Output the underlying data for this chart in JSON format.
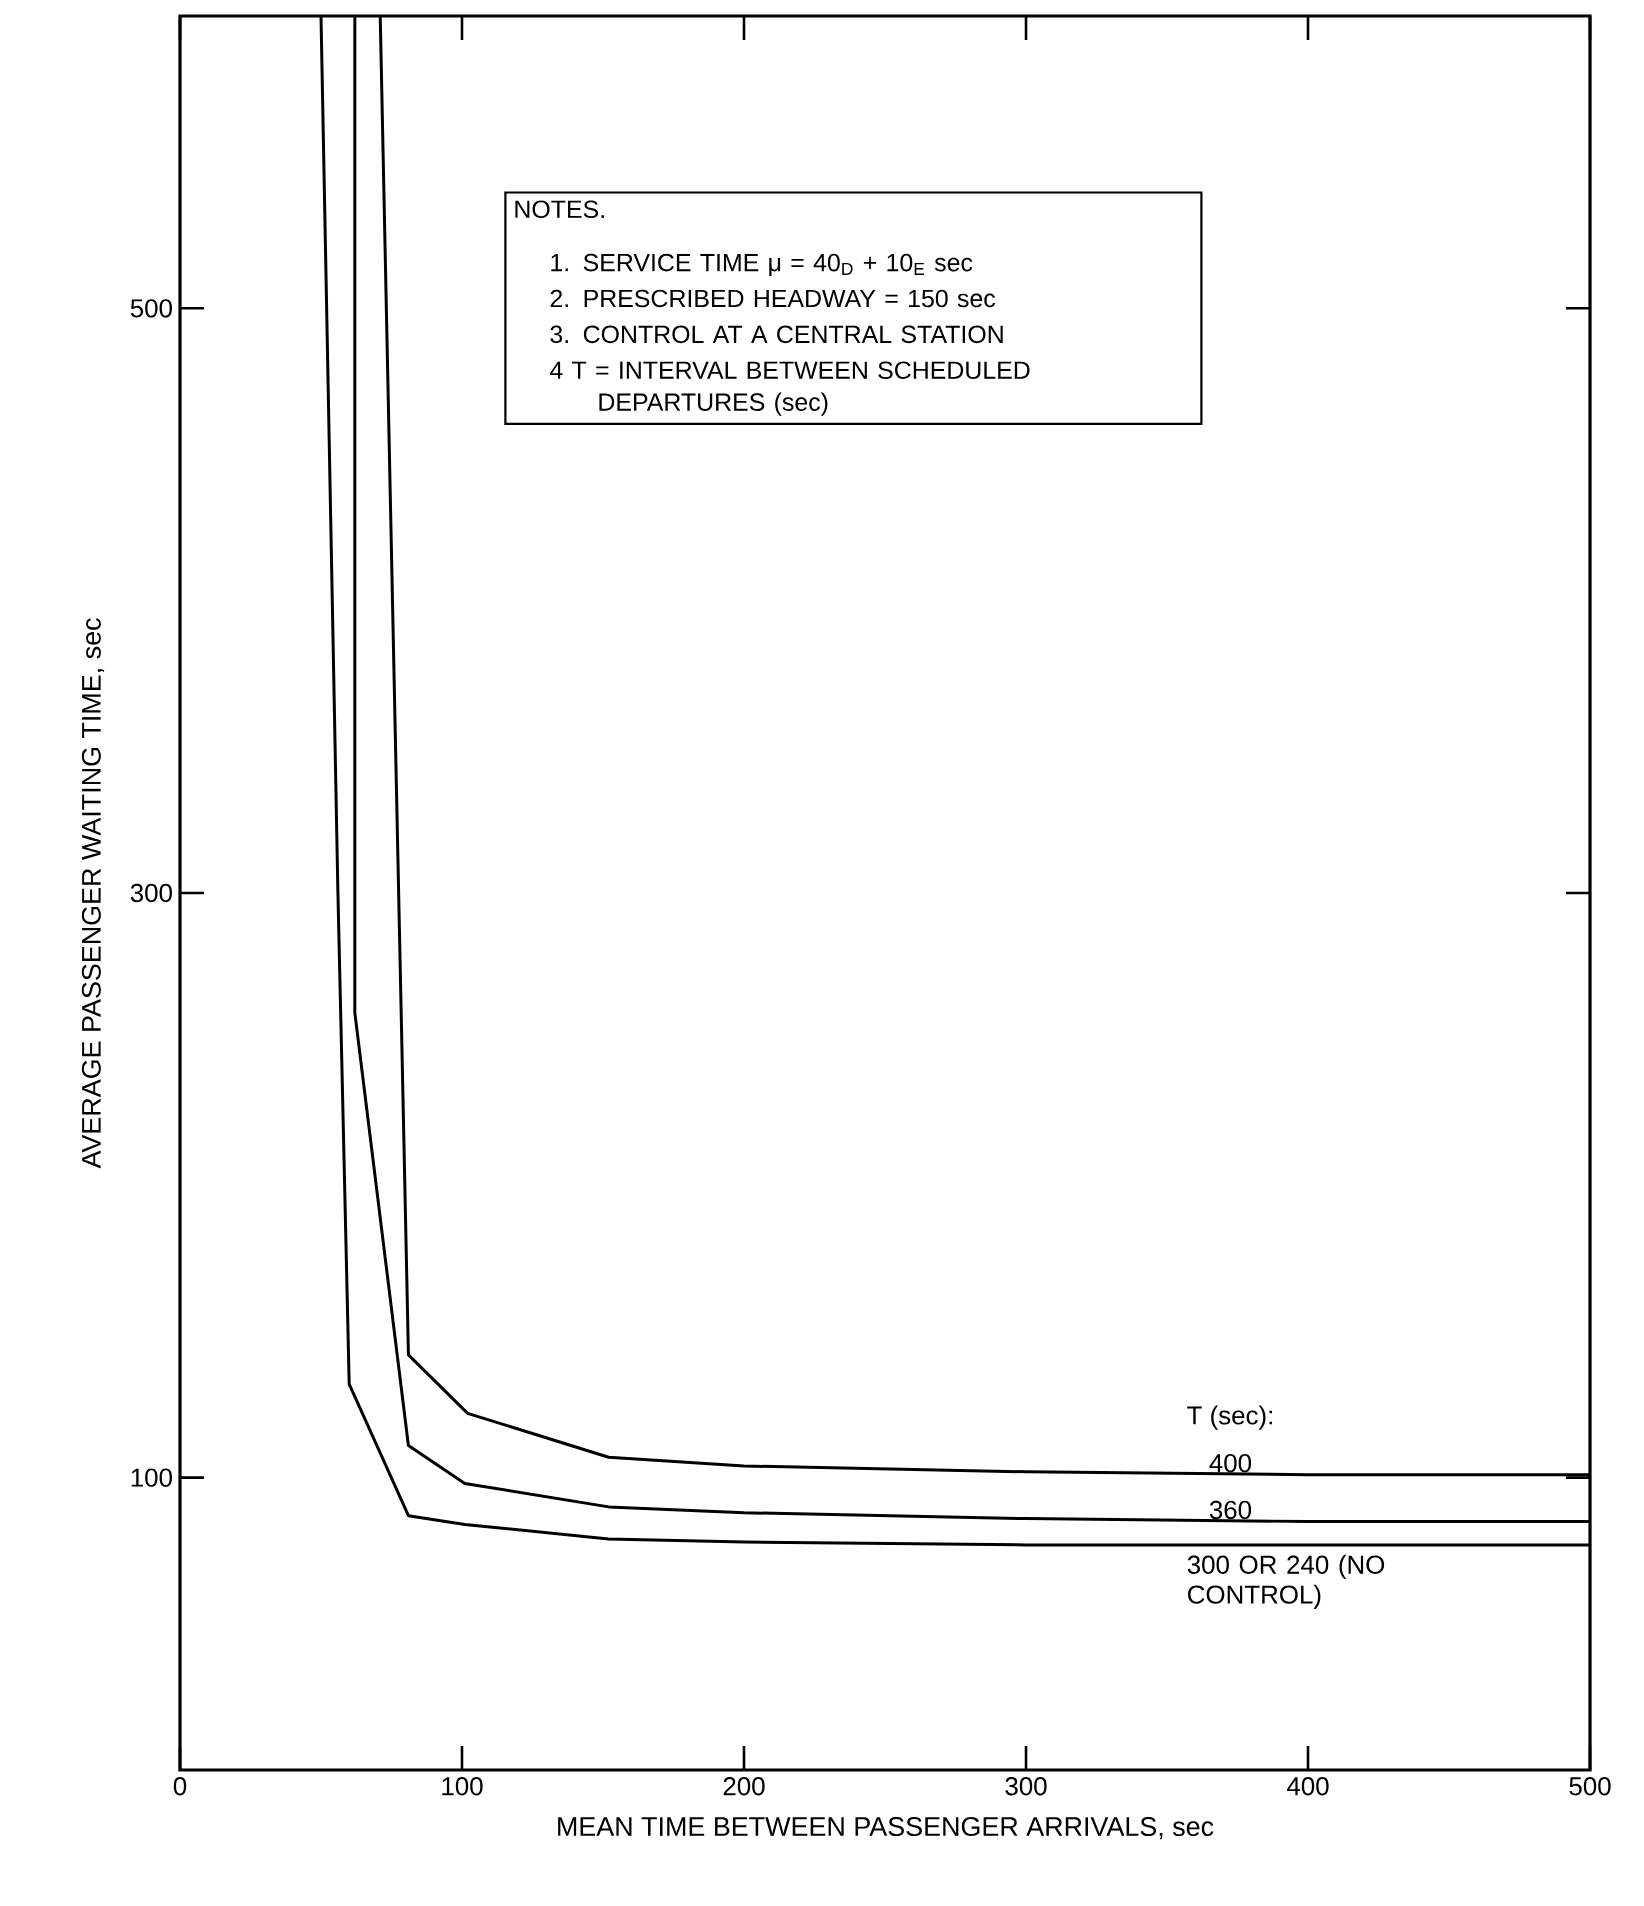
{
  "chart_data": {
    "type": "line",
    "xlabel": "MEAN TIME BETWEEN PASSENGER ARRIVALS, sec",
    "ylabel": "AVERAGE PASSENGER WAITING TIME, sec",
    "legend_title": "T (sec):",
    "annotations": [
      "NOTES.",
      "1. SERVICE TIME μ = 40$_{D}$ + 10$_{E}$ sec",
      "2. PRESCRIBED HEADWAY = 150 sec",
      "3. CONTROL AT A CENTRAL STATION",
      "4 T = INTERVAL BETWEEN SCHEDULED DEPARTURES (sec)"
    ],
    "xlim": [
      0,
      500
    ],
    "ylim": [
      0,
      600
    ],
    "xticks": [
      0,
      100,
      200,
      300,
      400,
      500
    ],
    "yticks": [
      100,
      300,
      500
    ],
    "grid": false,
    "legend": false,
    "marker": "none",
    "line_style": "solid",
    "series": [
      {
        "name": "400",
        "color": "#000000",
        "x": [
          71,
          76,
          81,
          102,
          152,
          200,
          300,
          400,
          500
        ],
        "values": [
          600,
          370,
          142,
          122,
          107,
          104,
          102,
          101,
          101
        ]
      },
      {
        "name": "360",
        "color": "#000000",
        "x": [
          62,
          62,
          81,
          101,
          152,
          200,
          300,
          400,
          500
        ],
        "values": [
          600,
          259,
          111,
          98,
          90,
          88,
          86,
          85,
          85
        ]
      },
      {
        "name": "300 OR 240 (NO CONTROL)",
        "color": "#000000",
        "x": [
          50,
          52,
          56,
          60,
          81,
          101,
          152,
          200,
          300,
          400,
          500
        ],
        "values": [
          600,
          500,
          300,
          132,
          87,
          84,
          79,
          78,
          77,
          77,
          77
        ]
      }
    ]
  }
}
